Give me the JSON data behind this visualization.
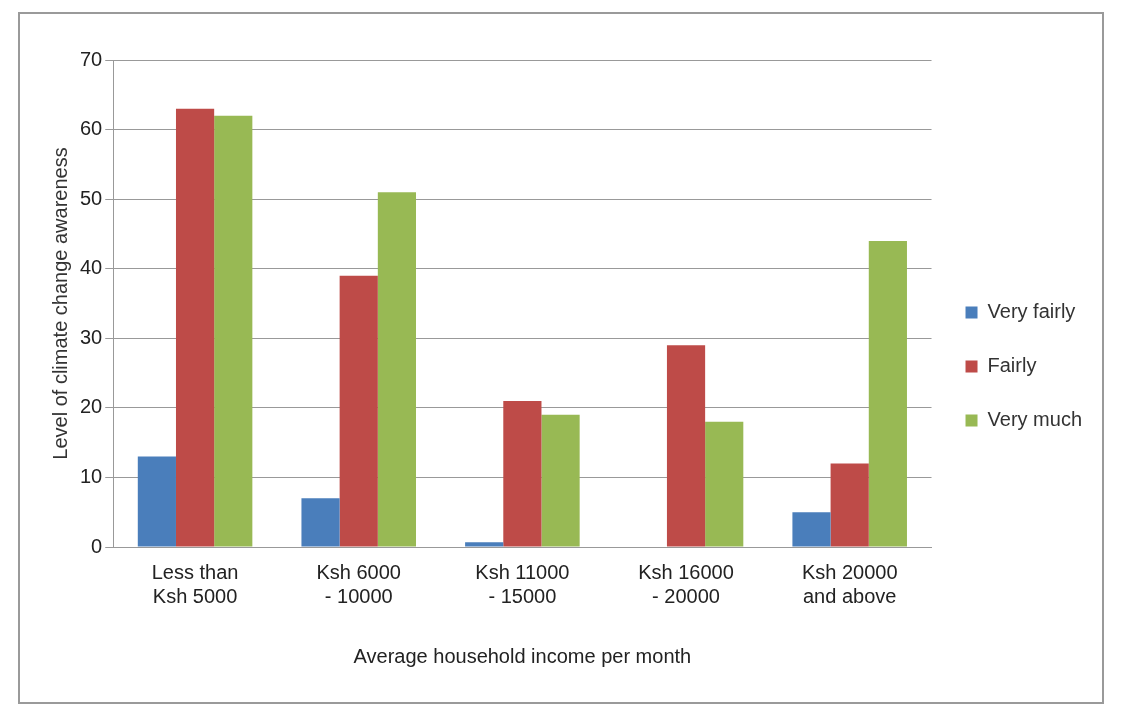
{
  "chart_data": {
    "type": "bar",
    "xlabel": "Average household income per month",
    "ylabel": "Level of climate change awareness",
    "categories": [
      "Less than Ksh 5000",
      "Ksh 6000 - 10000",
      "Ksh 11000 - 15000",
      "Ksh 16000 - 20000",
      "Ksh 20000 and above"
    ],
    "series": [
      {
        "name": "Very fairly",
        "color": "#4a7ebb",
        "values": [
          13,
          7,
          0.7,
          0,
          5
        ]
      },
      {
        "name": "Fairly",
        "color": "#be4b48",
        "values": [
          63,
          39,
          21,
          29,
          12
        ]
      },
      {
        "name": "Very much",
        "color": "#98b954",
        "values": [
          62,
          51,
          19,
          18,
          44
        ]
      }
    ],
    "ylim": [
      0,
      70
    ],
    "yticks": [
      0,
      10,
      20,
      30,
      40,
      50,
      60,
      70
    ],
    "grid": "y",
    "legend": "right"
  }
}
